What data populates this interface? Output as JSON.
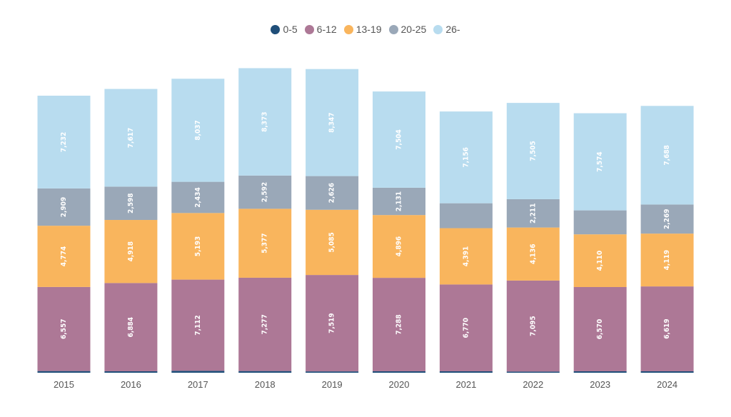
{
  "chart_data": {
    "type": "bar",
    "stacked": true,
    "categories": [
      "2015",
      "2016",
      "2017",
      "2018",
      "2019",
      "2020",
      "2021",
      "2022",
      "2023",
      "2024"
    ],
    "series": [
      {
        "name": "0-5",
        "color": "#1f4e79",
        "values": [
          131,
          112,
          149,
          131,
          104,
          112,
          112,
          93,
          112,
          112
        ]
      },
      {
        "name": "6-12",
        "color": "#ad7896",
        "values": [
          6557,
          6884,
          7112,
          7277,
          7519,
          7288,
          6770,
          7095,
          6570,
          6619
        ]
      },
      {
        "name": "13-19",
        "color": "#f9b55d",
        "values": [
          4774,
          4918,
          5193,
          5377,
          5085,
          4896,
          4391,
          4136,
          4110,
          4119
        ]
      },
      {
        "name": "20-25",
        "color": "#9aa8b8",
        "values": [
          2909,
          2598,
          2434,
          2592,
          2626,
          2131,
          1943,
          2211,
          1869,
          2269
        ]
      },
      {
        "name": "26-",
        "color": "#b8dcef",
        "values": [
          7232,
          7617,
          8037,
          8373,
          8347,
          7504,
          7156,
          7505,
          7574,
          7688
        ]
      }
    ],
    "data_labels": [
      [
        "",
        "",
        "",
        "",
        "",
        "",
        "",
        "",
        "",
        ""
      ],
      [
        "6,557",
        "6,884",
        "7,112",
        "7,277",
        "7,519",
        "7,288",
        "6,770",
        "7,095",
        "6,570",
        "6,619"
      ],
      [
        "4,774",
        "4,918",
        "5,193",
        "5,377",
        "5,085",
        "4,896",
        "4,391",
        "4,136",
        "4,110",
        "4,119"
      ],
      [
        "2,909",
        "2,598",
        "2,434",
        "2,592",
        "2,626",
        "2,131",
        "",
        "2,211",
        "",
        "2,269"
      ],
      [
        "7,232",
        "7,617",
        "8,037",
        "8,373",
        "8,347",
        "7,504",
        "7,156",
        "7,505",
        "7,574",
        "7,688"
      ]
    ],
    "legend": "top-center",
    "grid": false,
    "ylim": [
      0,
      24000
    ]
  }
}
